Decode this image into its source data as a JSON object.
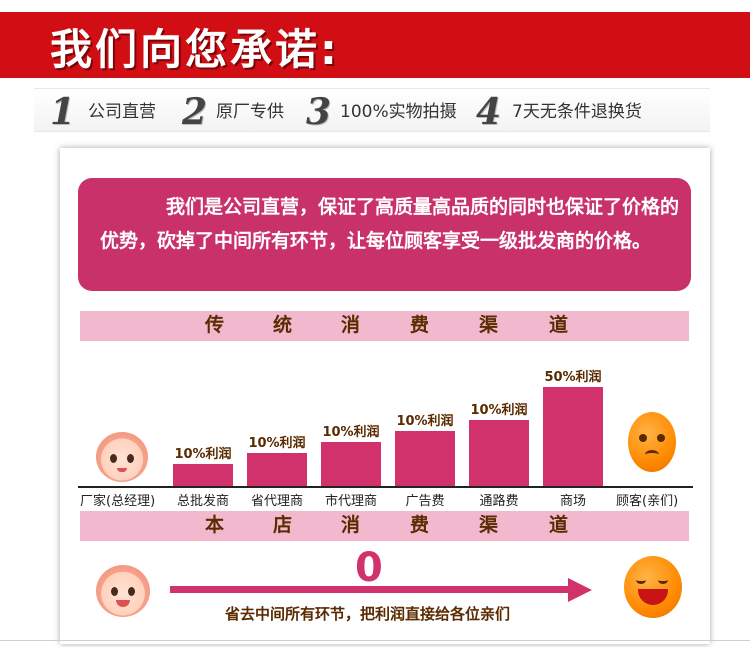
{
  "header": {
    "title": "我们向您承诺:"
  },
  "promises": [
    {
      "num": "1",
      "text": "公司直营"
    },
    {
      "num": "2",
      "text": "原厂专供"
    },
    {
      "num": "3",
      "text": "100%实物拍摄"
    },
    {
      "num": "4",
      "text": "7天无条件退换货"
    }
  ],
  "intro": {
    "text": "我们是公司直营，保证了高质量高品质的同时也保证了价格的优势，砍掉了中间所有环节，让每位顾客享受一级批发商的价格。"
  },
  "traditional": {
    "title_chars": [
      "传",
      "统",
      "消",
      "费",
      "渠",
      "道"
    ],
    "start_label": "厂家(总经理)",
    "end_label": "顾客(亲们)"
  },
  "chart_data": {
    "type": "bar",
    "categories": [
      "总批发商",
      "省代理商",
      "市代理商",
      "广告费",
      "通路费",
      "商场"
    ],
    "values": [
      10,
      10,
      10,
      10,
      10,
      50
    ],
    "labels": [
      "10%利润",
      "10%利润",
      "10%利润",
      "10%利润",
      "10%利润",
      "50%利润"
    ],
    "bar_heights_relative": [
      1,
      1.5,
      2,
      2.5,
      3,
      4.5
    ],
    "title": "传 统 消 费 渠 道"
  },
  "store": {
    "title_chars": [
      "本",
      "店",
      "消",
      "费",
      "渠",
      "道"
    ],
    "zero": "0",
    "caption": "省去中间所有环节，把利润直接给各位亲们"
  },
  "colors": {
    "header_red": "#d10e14",
    "accent_pink": "#d2326c",
    "band_pink": "#f2b8ce"
  }
}
